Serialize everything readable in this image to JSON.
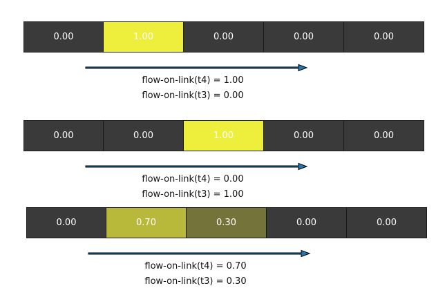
{
  "panels": [
    {
      "cells": [
        {
          "label": "0.00",
          "color": "#3a3a3a"
        },
        {
          "label": "1.00",
          "color": "#eeee3c"
        },
        {
          "label": "0.00",
          "color": "#3a3a3a"
        },
        {
          "label": "0.00",
          "color": "#3a3a3a"
        },
        {
          "label": "0.00",
          "color": "#3a3a3a"
        }
      ],
      "captions": [
        "flow-on-link(t4) = 1.00",
        "flow-on-link(t3) = 0.00"
      ]
    },
    {
      "cells": [
        {
          "label": "0.00",
          "color": "#3a3a3a"
        },
        {
          "label": "0.00",
          "color": "#3a3a3a"
        },
        {
          "label": "1.00",
          "color": "#eeee3c"
        },
        {
          "label": "0.00",
          "color": "#3a3a3a"
        },
        {
          "label": "0.00",
          "color": "#3a3a3a"
        }
      ],
      "captions": [
        "flow-on-link(t4) = 0.00",
        "flow-on-link(t3) = 1.00"
      ]
    },
    {
      "cells": [
        {
          "label": "0.00",
          "color": "#3a3a3a"
        },
        {
          "label": "0.70",
          "color": "#b8b83a"
        },
        {
          "label": "0.30",
          "color": "#74743a"
        },
        {
          "label": "0.00",
          "color": "#3a3a3a"
        },
        {
          "label": "0.00",
          "color": "#3a3a3a"
        }
      ],
      "captions": [
        "flow-on-link(t4) = 0.70",
        "flow-on-link(t3) = 0.30"
      ]
    }
  ],
  "arrow_color": "#1f77b4"
}
